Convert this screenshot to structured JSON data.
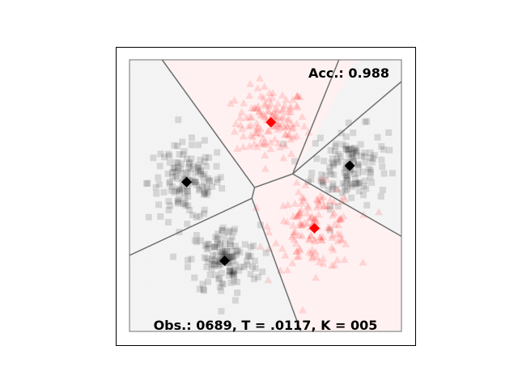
{
  "colors": {
    "background": "#ffffff",
    "class_a_region": "#f2f2f2",
    "class_b_region": "#fff0f0",
    "class_a_marker": "#000000",
    "class_b_marker": "#ff0000",
    "boundary": "#707070"
  },
  "chart_data": {
    "type": "scatter",
    "title": "",
    "xlabel": "",
    "ylabel": "",
    "xlim": [
      0,
      1
    ],
    "ylim": [
      0,
      1
    ],
    "grid": false,
    "legend": "none",
    "annotations": {
      "accuracy": "Acc.: 0.988",
      "footer": "Obs.: 0689, T = .0117, K = 005"
    },
    "centroids": [
      {
        "x": 0.52,
        "y": 0.77,
        "cls": "red"
      },
      {
        "x": 0.81,
        "y": 0.61,
        "cls": "black"
      },
      {
        "x": 0.21,
        "y": 0.55,
        "cls": "black"
      },
      {
        "x": 0.68,
        "y": 0.38,
        "cls": "red"
      },
      {
        "x": 0.35,
        "y": 0.26,
        "cls": "black"
      }
    ],
    "boundaries": [
      [
        [
          0.12,
          1.0
        ],
        [
          0.46,
          0.53
        ],
        [
          0.6,
          0.58
        ],
        [
          0.77,
          1.0
        ]
      ],
      [
        [
          0.6,
          0.58
        ],
        [
          1.0,
          0.92
        ]
      ],
      [
        [
          1.0,
          0.35
        ],
        [
          0.6,
          0.58
        ]
      ],
      [
        [
          0.46,
          0.53
        ],
        [
          0.45,
          0.49
        ],
        [
          0.0,
          0.28
        ]
      ],
      [
        [
          0.45,
          0.49
        ],
        [
          0.63,
          0.0
        ]
      ]
    ],
    "series": [
      {
        "cls": "red",
        "marker": "triangle",
        "center": [
          0.52,
          0.77
        ],
        "spread": 0.065,
        "count": 130
      },
      {
        "cls": "black",
        "marker": "square",
        "center": [
          0.81,
          0.61
        ],
        "spread": 0.07,
        "count": 140
      },
      {
        "cls": "black",
        "marker": "square",
        "center": [
          0.21,
          0.55
        ],
        "spread": 0.07,
        "count": 140
      },
      {
        "cls": "red",
        "marker": "triangle",
        "center": [
          0.68,
          0.38
        ],
        "spread": 0.075,
        "count": 140
      },
      {
        "cls": "black",
        "marker": "square",
        "center": [
          0.35,
          0.26
        ],
        "spread": 0.065,
        "count": 139
      }
    ]
  }
}
